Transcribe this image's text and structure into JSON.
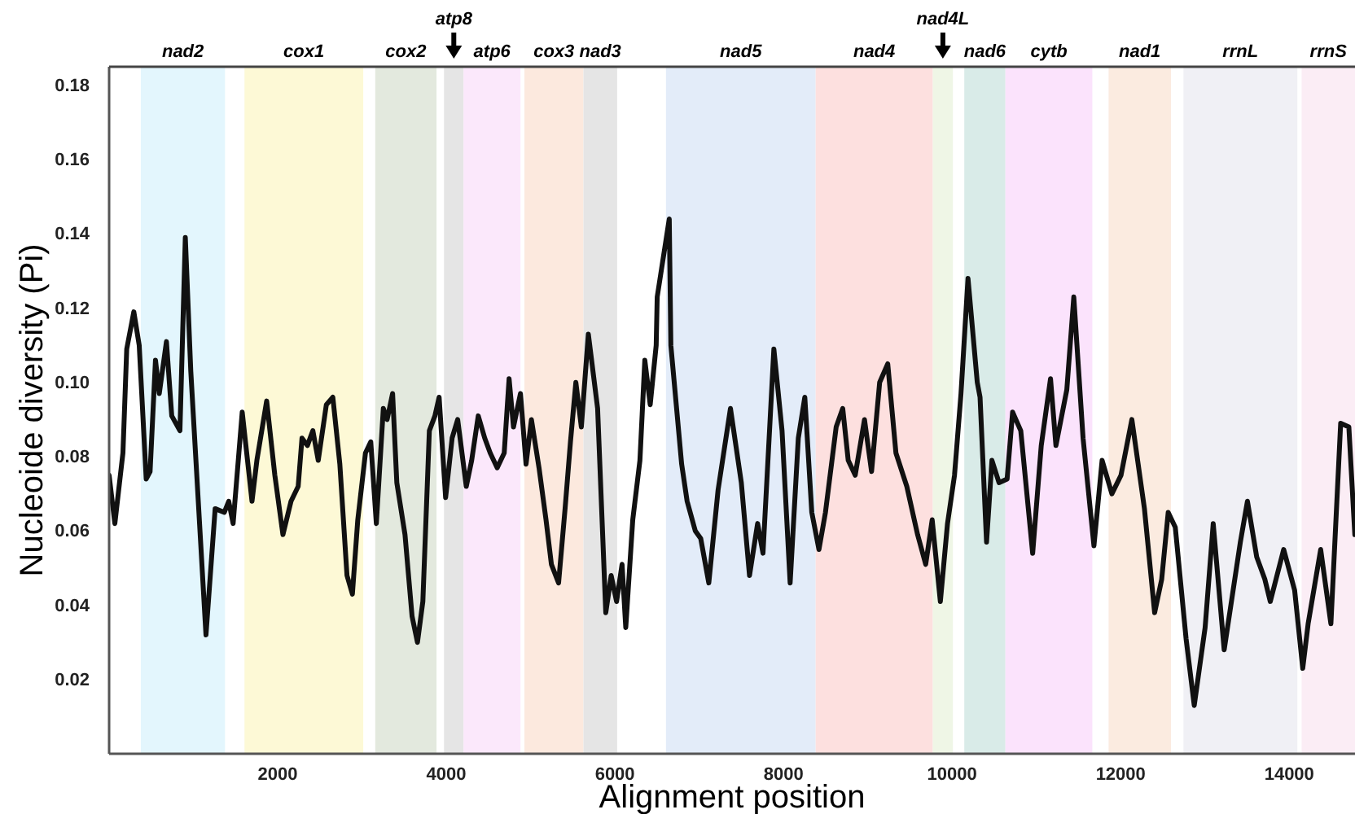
{
  "chart_data": {
    "type": "line",
    "xlabel": "Alignment position",
    "ylabel": "Nucleoide diversity (Pi)",
    "xlim": [
      0,
      14780
    ],
    "ylim": [
      0,
      0.185
    ],
    "xticks": [
      2000,
      4000,
      6000,
      8000,
      10000,
      12000,
      14000
    ],
    "yticks": [
      0.02,
      0.04,
      0.06,
      0.08,
      {
        "value": 0.1,
        "label": "0.10"
      },
      0.12,
      0.14,
      0.16,
      0.18
    ],
    "grid": false,
    "marker": "none",
    "line_style": "solid",
    "bands": [
      {
        "axis": "x",
        "from": 376,
        "to": 1375,
        "label": "nad2",
        "color": "#e3f6fd"
      },
      {
        "axis": "x",
        "from": 1606,
        "to": 3015,
        "label": "cox1",
        "color": "#fdf9d6"
      },
      {
        "axis": "x",
        "from": 3157,
        "to": 3884,
        "label": "cox2",
        "color": "#e3e9de"
      },
      {
        "axis": "x",
        "from": 3973,
        "to": 4205,
        "label": "atp8",
        "color": "#e5e5e5"
      },
      {
        "axis": "x",
        "from": 4205,
        "to": 4880,
        "label": "atp6",
        "color": "#fbe8fb"
      },
      {
        "axis": "x",
        "from": 4927,
        "to": 5627,
        "label": "cox3",
        "color": "#fce9de"
      },
      {
        "axis": "x",
        "from": 5627,
        "to": 6027,
        "label": "nad3",
        "color": "#e5e5e5"
      },
      {
        "axis": "x",
        "from": 6606,
        "to": 8382,
        "label": "nad5",
        "color": "#e3ecf9"
      },
      {
        "axis": "x",
        "from": 8382,
        "to": 9772,
        "label": "nad4",
        "color": "#fde0df"
      },
      {
        "axis": "x",
        "from": 9772,
        "to": 10010,
        "label": "nad4L",
        "color": "#eff6e6"
      },
      {
        "axis": "x",
        "from": 10145,
        "to": 10633,
        "label": "nad6",
        "color": "#d9ebe8"
      },
      {
        "axis": "x",
        "from": 10633,
        "to": 11664,
        "label": "cytb",
        "color": "#fbe3fc"
      },
      {
        "axis": "x",
        "from": 11857,
        "to": 12597,
        "label": "nad1",
        "color": "#fbebe0"
      },
      {
        "axis": "x",
        "from": 12745,
        "to": 14096,
        "label": "rrnL",
        "color": "#f0f0f5"
      },
      {
        "axis": "x",
        "from": 14147,
        "to": 14780,
        "label": "rrnS",
        "color": "#fbedf5"
      }
    ],
    "series": [
      {
        "color": "#111111",
        "x": [
          0,
          68,
          164,
          209,
          293,
          357,
          440,
          486,
          550,
          595,
          680,
          743,
          840,
          904,
          969,
          1149,
          1258,
          1367,
          1419,
          1471,
          1579,
          1695,
          1753,
          1869,
          1966,
          2062,
          2158,
          2243,
          2288,
          2352,
          2417,
          2481,
          2577,
          2654,
          2737,
          2822,
          2886,
          2950,
          3041,
          3104,
          3170,
          3253,
          3298,
          3363,
          3413,
          3510,
          3594,
          3658,
          3722,
          3799,
          3865,
          3915,
          3992,
          4069,
          4135,
          4237,
          4301,
          4379,
          4456,
          4521,
          4604,
          4687,
          4745,
          4797,
          4880,
          4946,
          5010,
          5100,
          5183,
          5247,
          5332,
          5409,
          5473,
          5537,
          5602,
          5685,
          5795,
          5892,
          5956,
          6020,
          6085,
          6129,
          6212,
          6297,
          6355,
          6419,
          6490,
          6502,
          6645,
          6664,
          6792,
          6857,
          6954,
          7018,
          7114,
          7224,
          7371,
          7500,
          7597,
          7693,
          7757,
          7886,
          7983,
          8079,
          8176,
          8253,
          8336,
          8421,
          8498,
          8625,
          8703,
          8768,
          8851,
          8961,
          9045,
          9141,
          9237,
          9334,
          9463,
          9591,
          9687,
          9764,
          9861,
          9946,
          10029,
          10106,
          10189,
          10299,
          10332,
          10409,
          10473,
          10557,
          10653,
          10718,
          10815,
          10956,
          11058,
          11168,
          11232,
          11361,
          11444,
          11554,
          11683,
          11780,
          11896,
          12004,
          12133,
          12282,
          12403,
          12487,
          12564,
          12648,
          12776,
          12873,
          13002,
          13098,
          13228,
          13420,
          13504,
          13614,
          13710,
          13775,
          13934,
          14064,
          14160,
          14224,
          14373,
          14494,
          14610,
          14707,
          14778
        ],
        "values": [
          0.075,
          0.062,
          0.081,
          0.109,
          0.119,
          0.11,
          0.074,
          0.076,
          0.106,
          0.097,
          0.111,
          0.091,
          0.087,
          0.139,
          0.103,
          0.032,
          0.066,
          0.065,
          0.068,
          0.062,
          0.092,
          0.068,
          0.079,
          0.095,
          0.075,
          0.059,
          0.068,
          0.072,
          0.085,
          0.083,
          0.087,
          0.079,
          0.094,
          0.096,
          0.078,
          0.048,
          0.043,
          0.063,
          0.081,
          0.084,
          0.062,
          0.093,
          0.09,
          0.097,
          0.073,
          0.059,
          0.037,
          0.03,
          0.041,
          0.087,
          0.091,
          0.096,
          0.069,
          0.085,
          0.09,
          0.072,
          0.079,
          0.091,
          0.085,
          0.081,
          0.077,
          0.081,
          0.101,
          0.088,
          0.097,
          0.078,
          0.09,
          0.077,
          0.063,
          0.051,
          0.046,
          0.066,
          0.084,
          0.1,
          0.088,
          0.113,
          0.093,
          0.038,
          0.048,
          0.041,
          0.051,
          0.034,
          0.063,
          0.079,
          0.106,
          0.094,
          0.11,
          0.123,
          0.144,
          0.11,
          0.078,
          0.068,
          0.06,
          0.058,
          0.046,
          0.071,
          0.093,
          0.073,
          0.048,
          0.062,
          0.054,
          0.109,
          0.087,
          0.046,
          0.085,
          0.096,
          0.065,
          0.055,
          0.065,
          0.088,
          0.093,
          0.079,
          0.075,
          0.09,
          0.076,
          0.1,
          0.105,
          0.081,
          0.072,
          0.059,
          0.051,
          0.063,
          0.041,
          0.062,
          0.075,
          0.097,
          0.128,
          0.1,
          0.096,
          0.057,
          0.079,
          0.073,
          0.074,
          0.092,
          0.087,
          0.054,
          0.083,
          0.101,
          0.083,
          0.098,
          0.123,
          0.085,
          0.056,
          0.079,
          0.07,
          0.075,
          0.09,
          0.066,
          0.038,
          0.047,
          0.065,
          0.061,
          0.031,
          0.013,
          0.034,
          0.062,
          0.028,
          0.057,
          0.068,
          0.053,
          0.047,
          0.041,
          0.055,
          0.044,
          0.023,
          0.035,
          0.055,
          0.035,
          0.089,
          0.088,
          0.059
        ]
      }
    ]
  }
}
